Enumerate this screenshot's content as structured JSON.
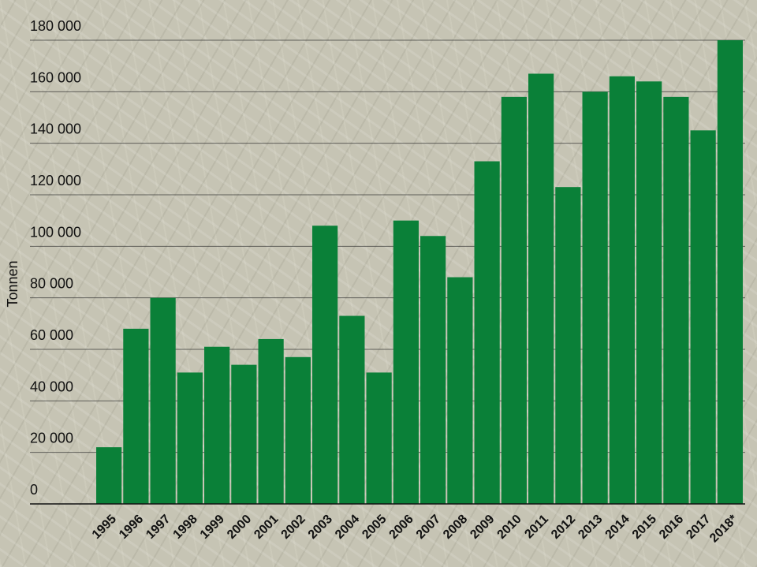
{
  "chart_data": {
    "type": "bar",
    "y_label": "Tonnen",
    "categories": [
      "1995",
      "1996",
      "1997",
      "1998",
      "1999",
      "2000",
      "2001",
      "2002",
      "2003",
      "2004",
      "2005",
      "2006",
      "2007",
      "2008",
      "2009",
      "2010",
      "2011",
      "2012",
      "2013",
      "2014",
      "2015",
      "2016",
      "2017",
      "2018*"
    ],
    "values": [
      22000,
      68000,
      80000,
      51000,
      61000,
      54000,
      64000,
      57000,
      108000,
      73000,
      51000,
      110000,
      104000,
      88000,
      133000,
      158000,
      167000,
      123000,
      160000,
      166000,
      164000,
      158000,
      145000,
      180000
    ],
    "color": "#0a8038",
    "ylim": [
      0,
      180000
    ],
    "yticks": [
      0,
      {
        "value": 20000,
        "label": "20 000"
      },
      {
        "value": 40000,
        "label": "40 000"
      },
      {
        "value": 60000,
        "label": "60 000"
      },
      {
        "value": 80000,
        "label": "80 000"
      },
      {
        "value": 100000,
        "label": "100 000"
      },
      {
        "value": 120000,
        "label": "120 000"
      },
      {
        "value": 140000,
        "label": "140 000"
      },
      {
        "value": 160000,
        "label": "160 000"
      },
      {
        "value": 180000,
        "label": "180 000"
      }
    ],
    "grid": true
  }
}
